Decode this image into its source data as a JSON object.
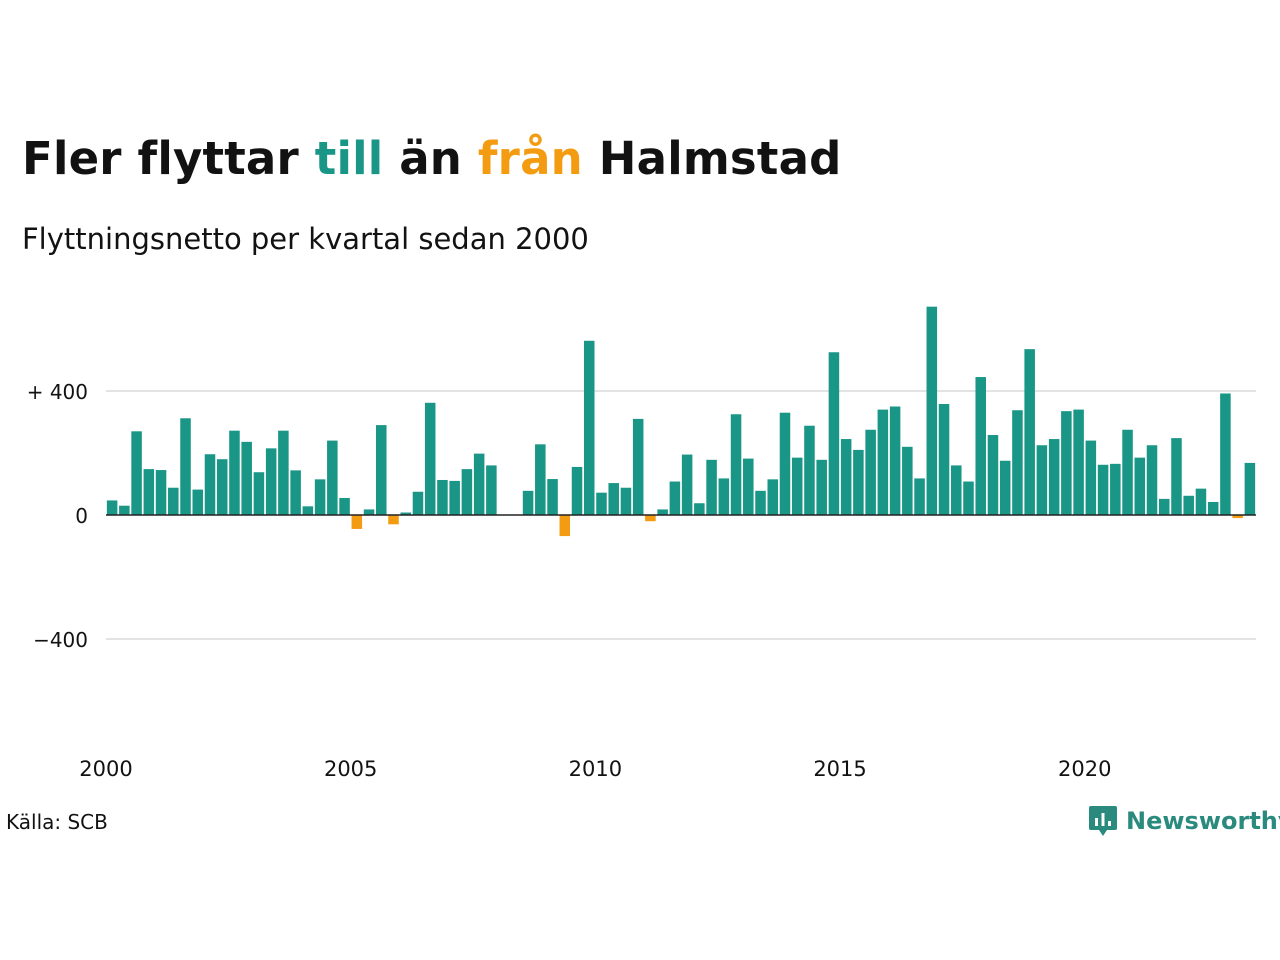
{
  "title": {
    "part1": "Fler flyttar",
    "part2": "till",
    "part3": "än",
    "part4": "från",
    "part5": "Halmstad"
  },
  "subtitle": "Flyttningsnetto per kvartal sedan 2000",
  "source": "Källa: SCB",
  "brand": {
    "name": "Newsworthy",
    "logo_icon": "newsworthy-chart-bubble-icon"
  },
  "colors": {
    "positive": "#1a9687",
    "negative": "#f39c12",
    "grid": "#e3e3e3",
    "axis": "#222222",
    "brand": "#2b8a7e"
  },
  "chart_data": {
    "type": "bar",
    "title": "Fler flyttar till än från Halmstad",
    "subtitle": "Flyttningsnetto per kvartal sedan 2000",
    "start_year": 2000,
    "quarters_per_year": 4,
    "x_ticks": [
      2000,
      2005,
      2010,
      2015,
      2020
    ],
    "y_ticks": [
      400,
      0,
      -400
    ],
    "y_tick_labels": [
      "+ 400",
      "0",
      "−400"
    ],
    "ylim": [
      -720,
      700
    ],
    "grid": true,
    "values": [
      47,
      30,
      270,
      148,
      145,
      88,
      312,
      82,
      196,
      180,
      272,
      236,
      138,
      215,
      272,
      144,
      28,
      115,
      240,
      55,
      -45,
      18,
      290,
      -30,
      8,
      75,
      362,
      113,
      110,
      148,
      198,
      160,
      0,
      0,
      78,
      228,
      116,
      -68,
      155,
      562,
      72,
      103,
      88,
      310,
      -20,
      18,
      108,
      195,
      38,
      178,
      118,
      325,
      182,
      78,
      115,
      330,
      185,
      288,
      178,
      525,
      245,
      210,
      275,
      340,
      350,
      220,
      118,
      672,
      358,
      160,
      108,
      445,
      258,
      175,
      338,
      535,
      225,
      245,
      335,
      340,
      240,
      162,
      165,
      275,
      185,
      225,
      52,
      248,
      62,
      85,
      42,
      392,
      -10,
      168
    ]
  }
}
